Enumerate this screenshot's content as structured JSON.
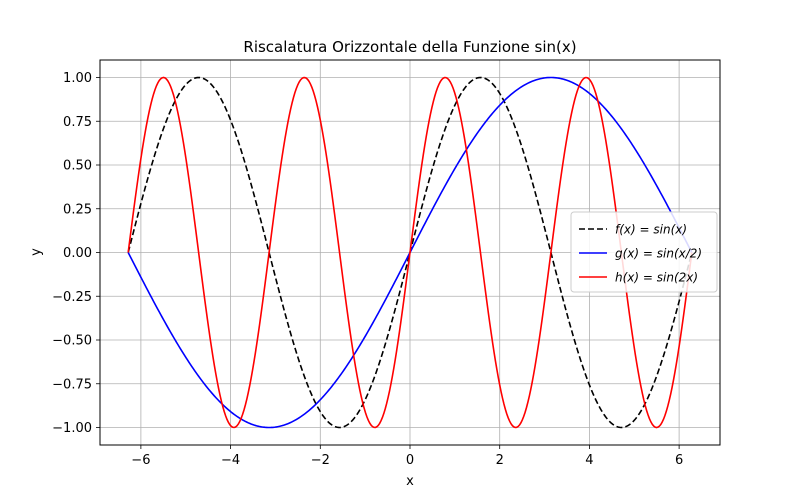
{
  "chart_data": {
    "type": "line",
    "title": "Riscalatura Orizzontale della Funzione sin(x)",
    "xlabel": "x",
    "ylabel": "y",
    "xlim": [
      -6.9115,
      6.9115
    ],
    "ylim": [
      -1.1,
      1.1
    ],
    "x_domain": [
      -6.2832,
      6.2832
    ],
    "samples": 400,
    "grid": true,
    "legend_position": "center-right",
    "x_ticks": [
      -6,
      -4,
      -2,
      0,
      2,
      4,
      6
    ],
    "x_tick_labels": [
      "−6",
      "−4",
      "−2",
      "0",
      "2",
      "4",
      "6"
    ],
    "y_ticks": [
      -1.0,
      -0.75,
      -0.5,
      -0.25,
      0.0,
      0.25,
      0.5,
      0.75,
      1.0
    ],
    "y_tick_labels": [
      "−1.00",
      "−0.75",
      "−0.50",
      "−0.25",
      "0.00",
      "0.25",
      "0.50",
      "0.75",
      "1.00"
    ],
    "series": [
      {
        "name": "f(x) = sin(x)",
        "freq": 1,
        "color": "#000000",
        "dashed": true
      },
      {
        "name": "g(x) = sin(x/2)",
        "freq": 0.5,
        "color": "#0000ff",
        "dashed": false
      },
      {
        "name": "h(x) = sin(2x)",
        "freq": 2,
        "color": "#ff0000",
        "dashed": false
      }
    ]
  }
}
